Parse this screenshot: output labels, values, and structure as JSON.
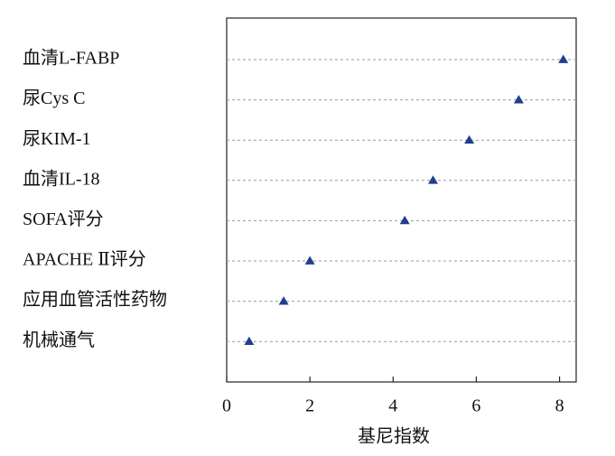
{
  "chart_data": {
    "type": "scatter",
    "x_label": "基尼指数",
    "categories": [
      "血清L-FABP",
      "尿Cys C",
      "尿KIM-1",
      "血清IL-18",
      "SOFA评分",
      "APACHE Ⅱ评分",
      "应用血管活性药物",
      "机械通气"
    ],
    "values": [
      8.09,
      7.02,
      5.83,
      4.96,
      4.28,
      2.0,
      1.37,
      0.54
    ],
    "color": "#1f3f8f",
    "marker": "triangle",
    "xlim": [
      0,
      8.4
    ],
    "xticks": [
      0,
      2,
      4,
      6,
      8
    ],
    "grid": true
  }
}
